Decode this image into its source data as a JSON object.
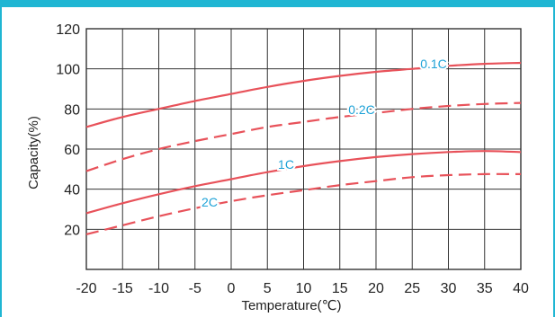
{
  "chart_data": {
    "type": "line",
    "title": "",
    "xlabel": "Temperature(℃)",
    "ylabel": "Capacity(%)",
    "xlim": [
      -20,
      40
    ],
    "ylim": [
      0,
      120
    ],
    "xticks": [
      -20,
      -15,
      -10,
      -5,
      0,
      5,
      10,
      15,
      20,
      25,
      30,
      35,
      40
    ],
    "yticks": [
      20,
      40,
      60,
      80,
      100,
      120
    ],
    "grid": true,
    "legend": "inline labels",
    "series": [
      {
        "name": "0.1C",
        "style": "solid",
        "x": [
          -20,
          -15,
          -10,
          -5,
          0,
          5,
          10,
          15,
          20,
          25,
          30,
          35,
          40
        ],
        "values": [
          71,
          76,
          80,
          84,
          87.5,
          91,
          94,
          96.5,
          98.5,
          100,
          101.5,
          102.5,
          103
        ]
      },
      {
        "name": "0.2C",
        "style": "dashed",
        "x": [
          -20,
          -15,
          -10,
          -5,
          0,
          5,
          10,
          15,
          20,
          25,
          30,
          35,
          40
        ],
        "values": [
          49,
          55,
          60,
          64,
          67.5,
          71,
          73.5,
          76,
          78,
          80,
          81.5,
          82.5,
          83
        ]
      },
      {
        "name": "1C",
        "style": "solid",
        "x": [
          -20,
          -15,
          -10,
          -5,
          0,
          5,
          10,
          15,
          20,
          25,
          30,
          35,
          40
        ],
        "values": [
          28,
          33,
          37.5,
          41.5,
          45,
          48.5,
          51.5,
          54,
          56,
          57.5,
          58.5,
          59,
          58.5
        ]
      },
      {
        "name": "2C",
        "style": "dashed",
        "x": [
          -20,
          -15,
          -10,
          -5,
          0,
          5,
          10,
          15,
          20,
          25,
          30,
          35,
          40
        ],
        "values": [
          17.5,
          22,
          26.5,
          30.5,
          34,
          37,
          39.5,
          42,
          44,
          46,
          47,
          47.5,
          47.5
        ]
      }
    ]
  },
  "colors": {
    "curve": "#e8525a",
    "label": "#1ea2d7",
    "frame": "#1fb6d3",
    "grid": "#333333"
  }
}
